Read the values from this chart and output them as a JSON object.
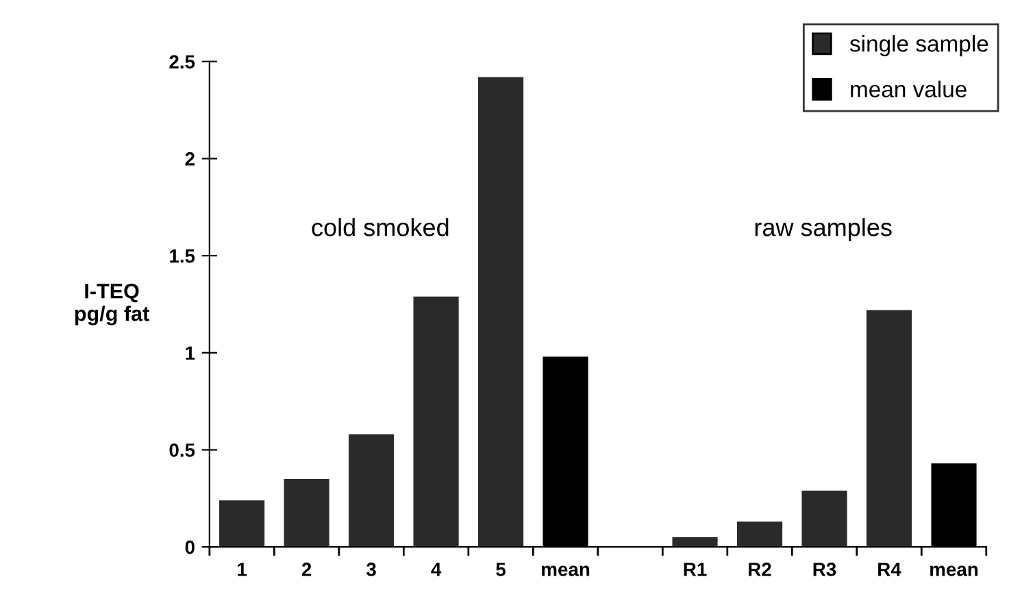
{
  "chart_data": {
    "type": "bar",
    "ylabel": "I-TEQ\npg/g fat",
    "categories": [
      "1",
      "2",
      "3",
      "4",
      "5",
      "mean",
      null,
      "R1",
      "R2",
      "R3",
      "R4",
      "mean"
    ],
    "series": [
      {
        "name": "single sample",
        "color": "#2a2a2a",
        "values": [
          0.24,
          0.35,
          0.58,
          1.29,
          2.42,
          null,
          null,
          0.05,
          0.13,
          0.29,
          1.22,
          null
        ]
      },
      {
        "name": "mean value",
        "color": "#000000",
        "values": [
          null,
          null,
          null,
          null,
          null,
          0.98,
          null,
          null,
          null,
          null,
          null,
          0.43
        ]
      }
    ],
    "ylim": [
      0,
      2.5
    ],
    "yticks": [
      0,
      0.5,
      1,
      1.5,
      2,
      2.5
    ],
    "annotations": [
      "cold smoked",
      "raw samples"
    ],
    "legend": "top right",
    "grid": false
  }
}
